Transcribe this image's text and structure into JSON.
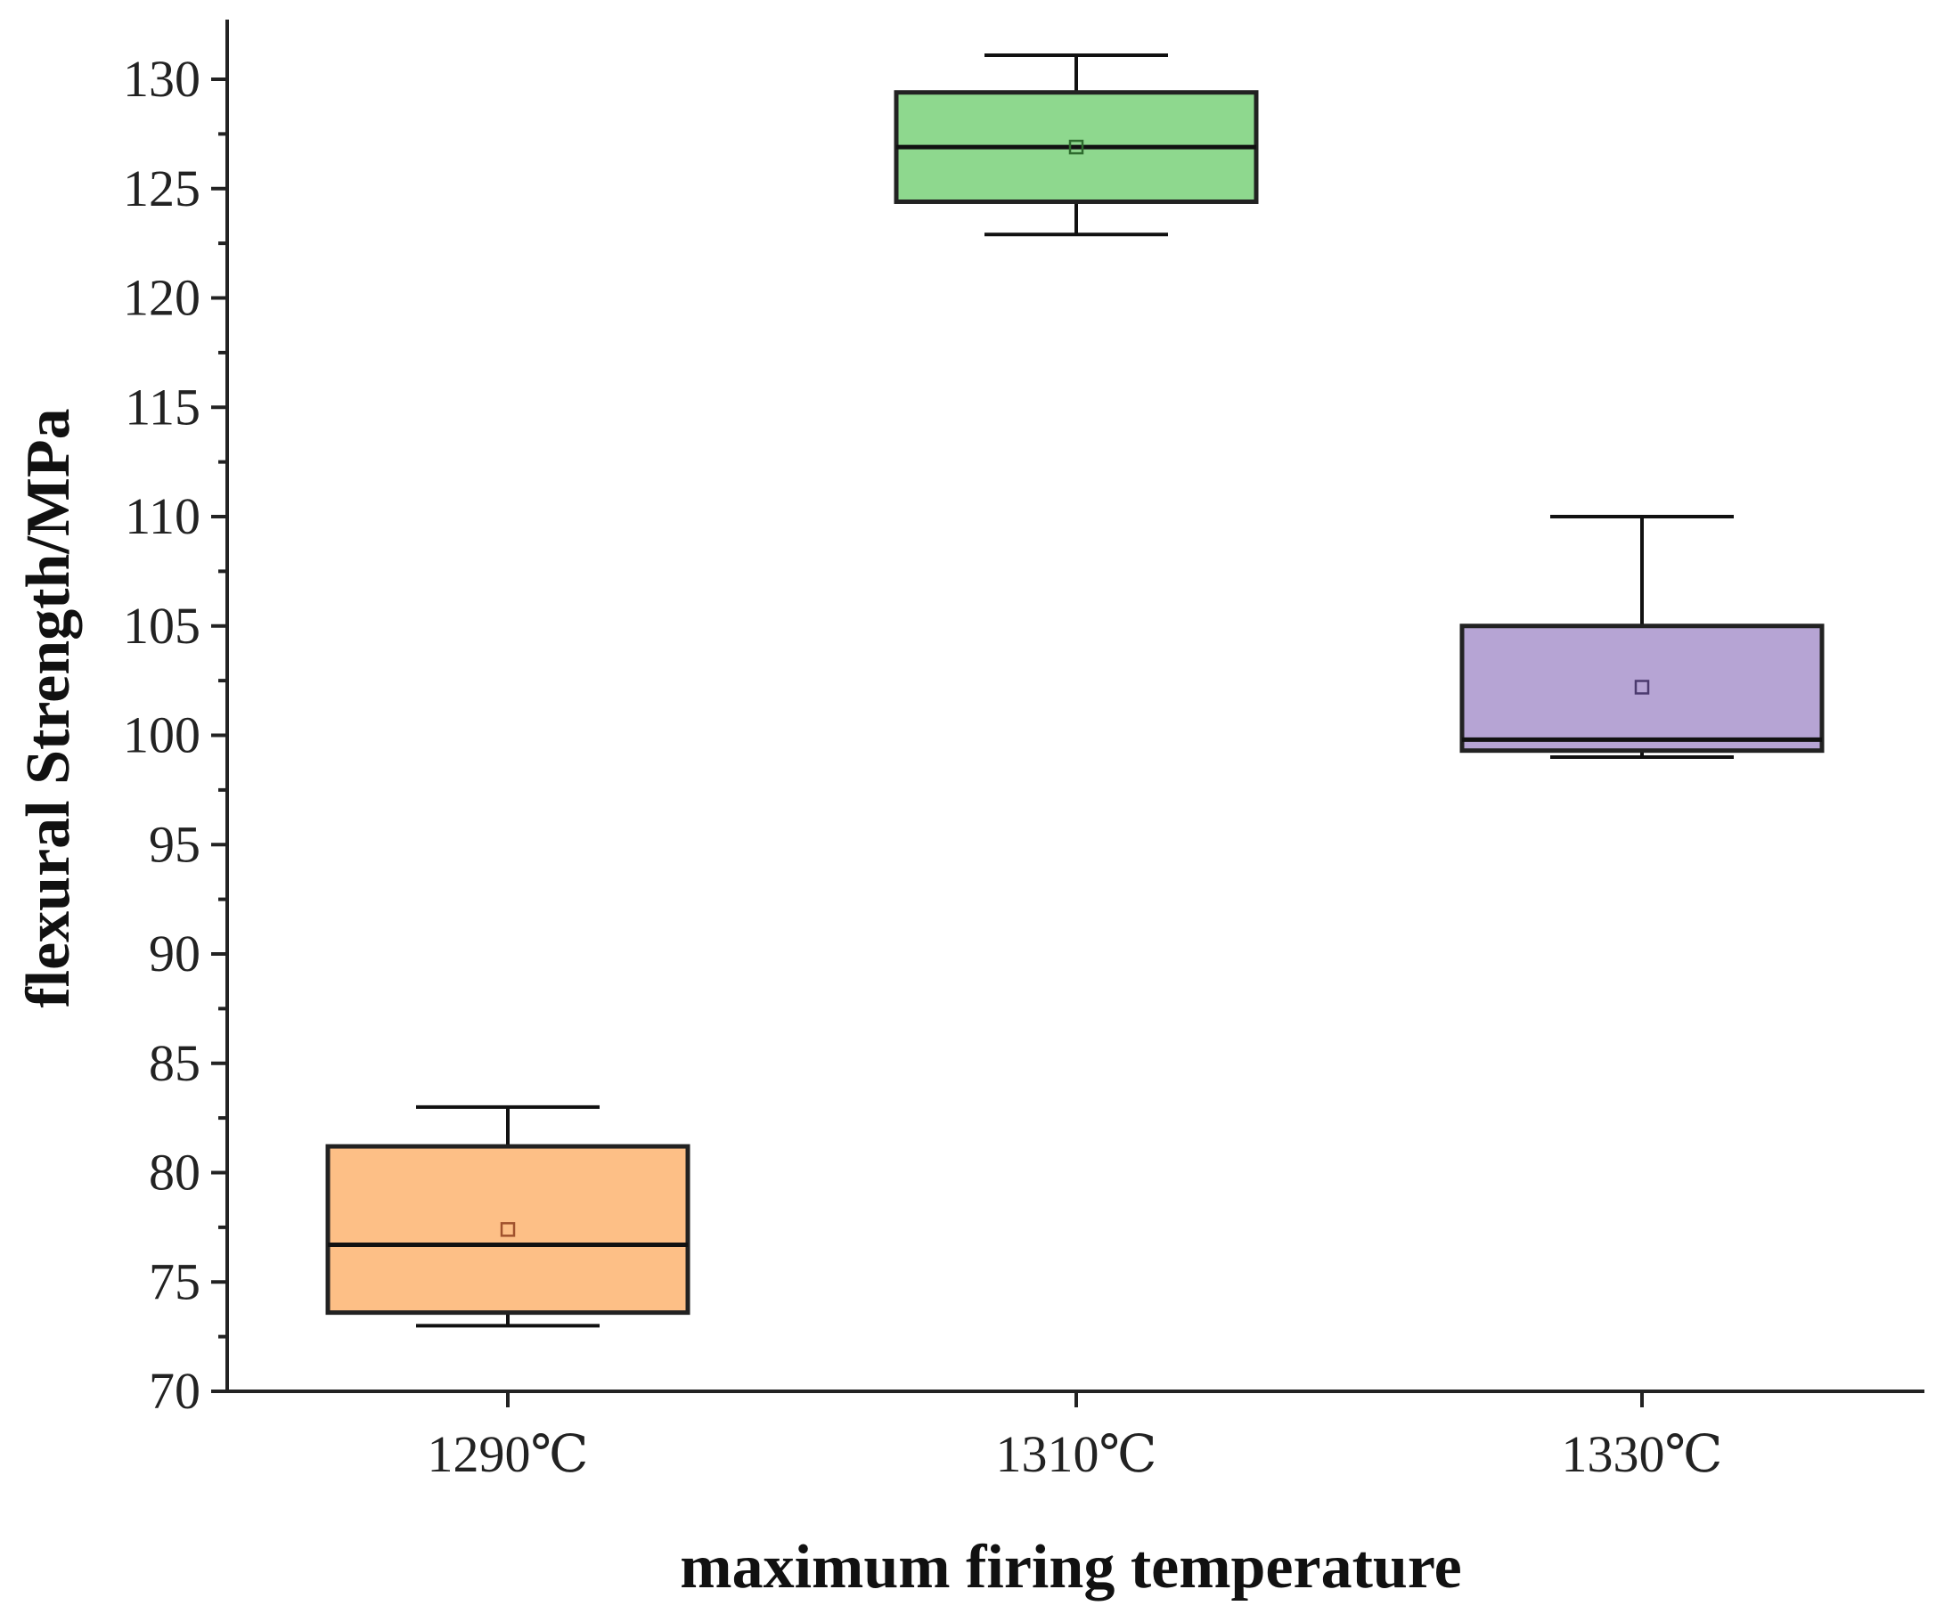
{
  "chart_data": {
    "type": "box",
    "title": "",
    "xlabel": "maximum firing temperature",
    "ylabel": "flexural Strength/MPa",
    "ylim": [
      70,
      132.5
    ],
    "yticks": [
      70,
      75,
      80,
      85,
      90,
      95,
      100,
      105,
      110,
      115,
      120,
      125,
      130
    ],
    "ytick_labels": [
      "70",
      "75",
      "80",
      "85",
      "90",
      "95",
      "100",
      "105",
      "110",
      "115",
      "120",
      "125",
      "130"
    ],
    "categories": [
      "1290℃",
      "1310℃",
      "1330℃"
    ],
    "grid": false,
    "legend": "none",
    "boxes": [
      {
        "category": "1290℃",
        "min": 73.0,
        "q1": 73.6,
        "median": 76.7,
        "q3": 81.2,
        "max": 83.0,
        "mean": 77.4,
        "color": "#FDBF86",
        "mean_color": "#A0522D"
      },
      {
        "category": "1310℃",
        "min": 122.9,
        "q1": 124.4,
        "median": 126.9,
        "q3": 129.4,
        "max": 131.1,
        "mean": 126.9,
        "color": "#8ED88E",
        "mean_color": "#2E6B2E"
      },
      {
        "category": "1330℃",
        "min": 99.0,
        "q1": 99.3,
        "median": 99.8,
        "q3": 105.0,
        "max": 110.0,
        "mean": 102.2,
        "color": "#B6A4D4",
        "mean_color": "#4B3A6E"
      }
    ]
  }
}
